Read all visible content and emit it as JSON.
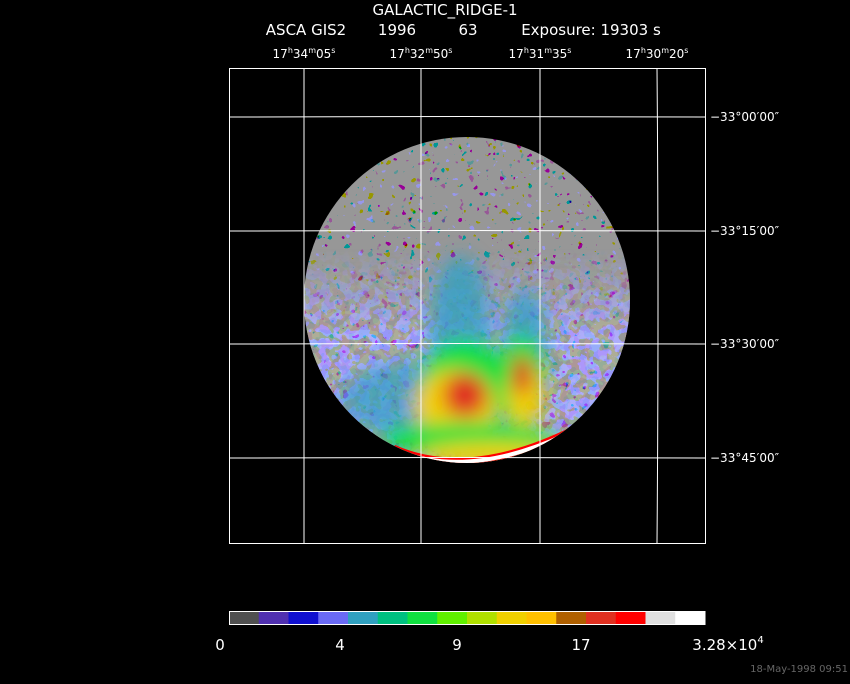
{
  "header": {
    "title": "GALACTIC_RIDGE-1",
    "instrument": "ASCA GIS2",
    "year": "1996",
    "number": "63",
    "exposure": "Exposure: 19303 s"
  },
  "ra_labels": [
    [
      "17",
      "h",
      "34",
      "m",
      "05",
      "s"
    ],
    [
      "17",
      "h",
      "32",
      "m",
      "50",
      "s"
    ],
    [
      "17",
      "h",
      "31",
      "m",
      "35",
      "s"
    ],
    [
      "17",
      "h",
      "30",
      "m",
      "20",
      "s"
    ]
  ],
  "dec_labels": [
    "−33°00′00″",
    "−33°15′00″",
    "−33°30′00″",
    "−33°45′00″"
  ],
  "colorbar": {
    "colors": [
      "#505050",
      "#5030b0",
      "#1010d0",
      "#6a6af5",
      "#30a0c0",
      "#00c080",
      "#10e040",
      "#60f000",
      "#b0e000",
      "#f0d000",
      "#ffc000",
      "#b06000",
      "#e03020",
      "#ff0000",
      "#e0e0e0",
      "#ffffff"
    ],
    "labels": [
      "0",
      "4",
      "9",
      "17"
    ],
    "max_label": {
      "base": "3.28×10",
      "exp": "4"
    }
  },
  "footer": "18-May-1998 09:51"
}
